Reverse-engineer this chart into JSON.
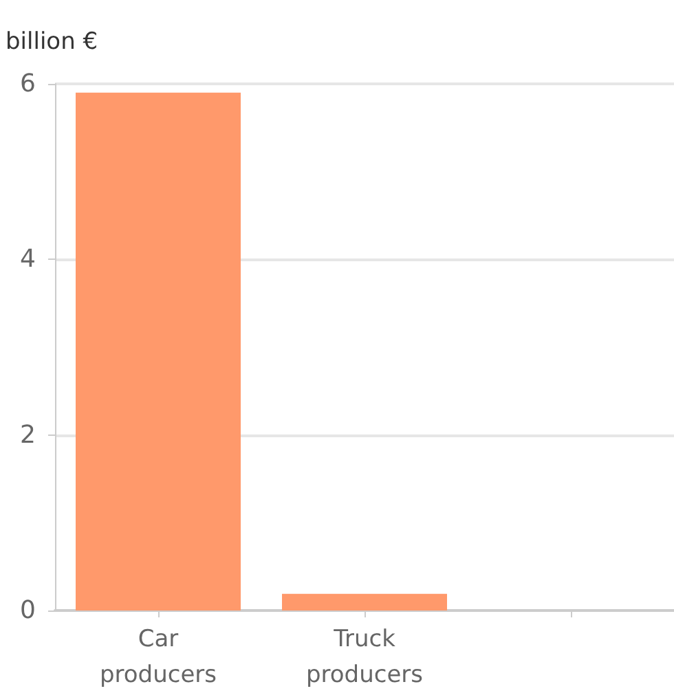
{
  "chart_data": {
    "type": "bar",
    "ylabel": "billion €",
    "categories": [
      "Car\nproducers",
      "Truck\nproducers",
      null
    ],
    "values": [
      5.9,
      0.19,
      null
    ],
    "color": "#ff996b",
    "ylim": [
      0,
      6
    ],
    "yticks": [
      0,
      2,
      4,
      6
    ],
    "grid": "y"
  }
}
